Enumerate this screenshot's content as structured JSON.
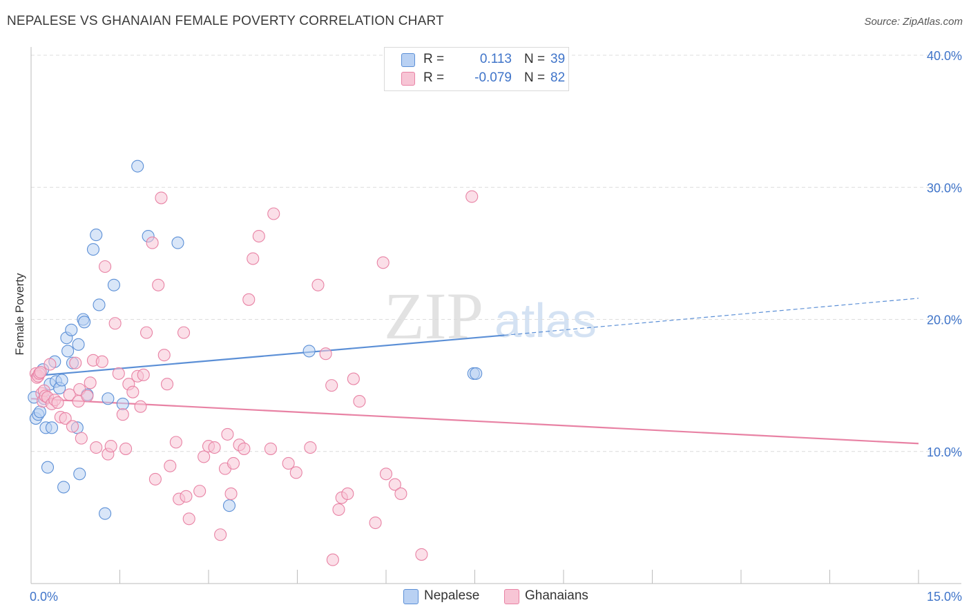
{
  "title": "NEPALESE VS GHANAIAN FEMALE POVERTY CORRELATION CHART",
  "source": "Source: ZipAtlas.com",
  "watermark": {
    "zip": "ZIP",
    "atlas": "atlas"
  },
  "legend_top": [
    {
      "r_label": "R =",
      "r_value": "0.113",
      "n_label": "N =",
      "n_value": "39",
      "color": "#5b8fd6"
    },
    {
      "r_label": "R =",
      "r_value": "-0.079",
      "n_label": "N =",
      "n_value": "82",
      "color": "#e882a4"
    }
  ],
  "chart_data": {
    "type": "scatter",
    "title": "NEPALESE VS GHANAIAN FEMALE POVERTY CORRELATION CHART",
    "xlabel": "",
    "ylabel": "Female Poverty",
    "xlim": [
      0,
      15
    ],
    "ylim": [
      0,
      40
    ],
    "x_tick_labels": [
      "0.0%",
      "15.0%"
    ],
    "y_ticks": [
      10,
      20,
      30,
      40
    ],
    "y_tick_labels": [
      "10.0%",
      "20.0%",
      "30.0%",
      "40.0%"
    ],
    "grid": "horizontal dashed",
    "legend_position": "bottom",
    "series": [
      {
        "name": "Nepalese",
        "color": "#5b8fd6",
        "fill": "#b9d1f3",
        "trend": {
          "x0": 0,
          "y0": 15.7,
          "x1": 8.0,
          "y1": 18.8,
          "dash_to_x": 15.0,
          "dash_to_y": 21.6
        },
        "points": [
          [
            0.05,
            14.1
          ],
          [
            0.08,
            12.5
          ],
          [
            0.12,
            12.8
          ],
          [
            0.15,
            13.0
          ],
          [
            0.2,
            16.2
          ],
          [
            0.22,
            14.0
          ],
          [
            0.25,
            11.8
          ],
          [
            0.28,
            8.8
          ],
          [
            0.32,
            15.1
          ],
          [
            0.35,
            11.8
          ],
          [
            0.4,
            16.8
          ],
          [
            0.42,
            15.3
          ],
          [
            0.48,
            14.8
          ],
          [
            0.52,
            15.4
          ],
          [
            0.55,
            7.3
          ],
          [
            0.6,
            18.6
          ],
          [
            0.62,
            17.6
          ],
          [
            0.68,
            19.2
          ],
          [
            0.7,
            16.7
          ],
          [
            0.78,
            11.8
          ],
          [
            0.8,
            18.1
          ],
          [
            0.82,
            8.3
          ],
          [
            0.88,
            20.0
          ],
          [
            0.9,
            19.8
          ],
          [
            0.95,
            14.3
          ],
          [
            1.05,
            25.3
          ],
          [
            1.1,
            26.4
          ],
          [
            1.15,
            21.1
          ],
          [
            1.25,
            5.3
          ],
          [
            1.3,
            14.0
          ],
          [
            1.4,
            22.6
          ],
          [
            1.55,
            13.6
          ],
          [
            1.8,
            31.6
          ],
          [
            1.98,
            26.3
          ],
          [
            2.48,
            25.8
          ],
          [
            3.35,
            5.9
          ],
          [
            4.7,
            17.6
          ],
          [
            7.48,
            15.9
          ],
          [
            7.52,
            15.9
          ]
        ]
      },
      {
        "name": "Ghanaians",
        "color": "#e882a4",
        "fill": "#f7c5d5",
        "trend": {
          "x0": 0,
          "y0": 14.0,
          "x1": 15.0,
          "y1": 10.6
        },
        "points": [
          [
            0.08,
            15.9
          ],
          [
            0.1,
            15.6
          ],
          [
            0.12,
            15.7
          ],
          [
            0.14,
            15.9
          ],
          [
            0.16,
            16.0
          ],
          [
            0.18,
            14.4
          ],
          [
            0.2,
            13.8
          ],
          [
            0.22,
            14.6
          ],
          [
            0.24,
            14.2
          ],
          [
            0.28,
            14.1
          ],
          [
            0.32,
            16.6
          ],
          [
            0.35,
            13.6
          ],
          [
            0.4,
            13.9
          ],
          [
            0.45,
            13.7
          ],
          [
            0.5,
            12.6
          ],
          [
            0.58,
            12.5
          ],
          [
            0.65,
            14.3
          ],
          [
            0.7,
            11.9
          ],
          [
            0.75,
            16.7
          ],
          [
            0.8,
            13.8
          ],
          [
            0.82,
            14.7
          ],
          [
            0.85,
            11.0
          ],
          [
            0.95,
            14.2
          ],
          [
            1.0,
            15.2
          ],
          [
            1.05,
            16.9
          ],
          [
            1.1,
            10.3
          ],
          [
            1.2,
            16.8
          ],
          [
            1.25,
            24.0
          ],
          [
            1.3,
            9.8
          ],
          [
            1.35,
            10.4
          ],
          [
            1.42,
            19.7
          ],
          [
            1.48,
            15.9
          ],
          [
            1.55,
            12.8
          ],
          [
            1.6,
            10.2
          ],
          [
            1.65,
            15.1
          ],
          [
            1.72,
            14.5
          ],
          [
            1.8,
            15.7
          ],
          [
            1.85,
            13.4
          ],
          [
            1.9,
            15.8
          ],
          [
            1.95,
            19.0
          ],
          [
            2.05,
            25.8
          ],
          [
            2.1,
            7.9
          ],
          [
            2.15,
            22.6
          ],
          [
            2.2,
            29.2
          ],
          [
            2.25,
            17.3
          ],
          [
            2.3,
            15.1
          ],
          [
            2.35,
            8.9
          ],
          [
            2.45,
            10.7
          ],
          [
            2.5,
            6.4
          ],
          [
            2.58,
            19.0
          ],
          [
            2.62,
            6.6
          ],
          [
            2.67,
            4.9
          ],
          [
            2.85,
            7.0
          ],
          [
            2.92,
            9.6
          ],
          [
            3.0,
            10.4
          ],
          [
            3.1,
            10.3
          ],
          [
            3.2,
            3.7
          ],
          [
            3.28,
            8.7
          ],
          [
            3.32,
            11.3
          ],
          [
            3.38,
            6.8
          ],
          [
            3.42,
            9.1
          ],
          [
            3.52,
            10.5
          ],
          [
            3.6,
            10.2
          ],
          [
            3.68,
            21.5
          ],
          [
            3.75,
            24.6
          ],
          [
            3.85,
            26.3
          ],
          [
            4.05,
            10.2
          ],
          [
            4.1,
            28.0
          ],
          [
            4.35,
            9.1
          ],
          [
            4.48,
            8.4
          ],
          [
            4.72,
            10.3
          ],
          [
            4.85,
            22.6
          ],
          [
            4.98,
            17.4
          ],
          [
            5.08,
            15.0
          ],
          [
            5.1,
            1.8
          ],
          [
            5.2,
            5.6
          ],
          [
            5.25,
            6.5
          ],
          [
            5.35,
            6.8
          ],
          [
            5.45,
            15.5
          ],
          [
            5.55,
            13.8
          ],
          [
            5.82,
            4.6
          ],
          [
            5.95,
            24.3
          ]
        ]
      }
    ]
  },
  "legend_bottom": [
    {
      "label": "Nepalese",
      "color": "#5b8fd6",
      "fill": "#b9d1f3"
    },
    {
      "label": "Ghanaians",
      "color": "#e882a4",
      "fill": "#f7c5d5"
    }
  ],
  "extra_points": {
    "Ghanaians": [
      [
        6.6,
        2.2
      ],
      [
        7.45,
        29.3
      ],
      [
        6.0,
        8.3
      ],
      [
        6.15,
        7.5
      ],
      [
        6.25,
        6.8
      ]
    ]
  }
}
